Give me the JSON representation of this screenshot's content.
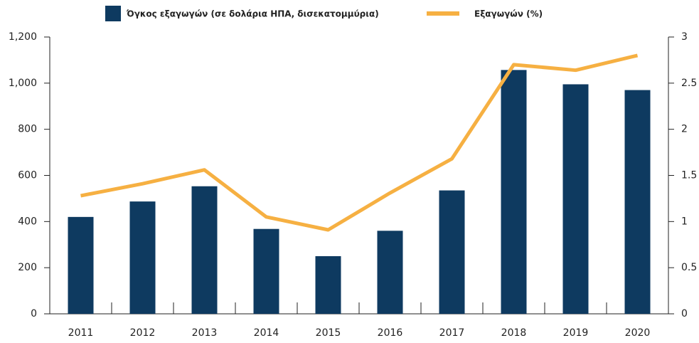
{
  "chart_data": {
    "type": "bar",
    "categories": [
      "2011",
      "2012",
      "2013",
      "2014",
      "2015",
      "2016",
      "2017",
      "2018",
      "2019",
      "2020"
    ],
    "series": [
      {
        "name": "Όγκος εξαγωγών  (σε δολάρια ΗΠΑ, δισεκατομμύρια)",
        "type": "bar",
        "color": "#0e3a60",
        "values": [
          420,
          487,
          553,
          368,
          250,
          360,
          535,
          1057,
          995,
          970
        ]
      },
      {
        "name": "Εξαγωγών  (%)",
        "type": "line",
        "axis": "y2",
        "color": "#f6b042",
        "values": [
          1.28,
          1.41,
          1.56,
          1.05,
          0.91,
          1.31,
          1.68,
          2.7,
          2.64,
          2.8
        ]
      }
    ],
    "ylim": [
      0,
      1200
    ],
    "yticks": [
      0,
      200,
      400,
      600,
      800,
      {
        "value": 1000,
        "label": "1,000"
      },
      {
        "value": 1200,
        "label": "1,200"
      }
    ],
    "y2lim": [
      0,
      3
    ],
    "y2ticks": [
      0,
      0.5,
      1,
      1.5,
      2,
      2.5,
      3
    ],
    "legend": "top"
  }
}
